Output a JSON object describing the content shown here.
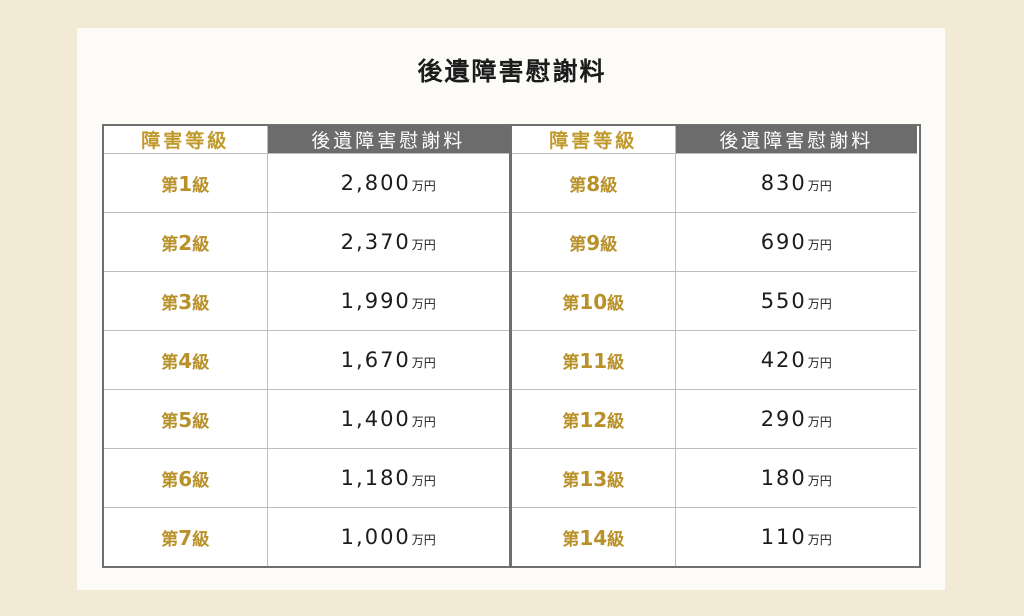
{
  "title": "後遺障害慰謝料",
  "headers": {
    "grade": "障害等級",
    "amount": "後遺障害慰謝料"
  },
  "grade_prefix": "第",
  "grade_suffix": "級",
  "unit": "万円",
  "colors": {
    "background": "#f3ead6",
    "grade_gold": "#b8912a",
    "header_gray": "#6c6c6c"
  },
  "left_rows": [
    {
      "grade": "1",
      "amount": "2,800"
    },
    {
      "grade": "2",
      "amount": "2,370"
    },
    {
      "grade": "3",
      "amount": "1,990"
    },
    {
      "grade": "4",
      "amount": "1,670"
    },
    {
      "grade": "5",
      "amount": "1,400"
    },
    {
      "grade": "6",
      "amount": "1,180"
    },
    {
      "grade": "7",
      "amount": "1,000"
    }
  ],
  "right_rows": [
    {
      "grade": "8",
      "amount": "830"
    },
    {
      "grade": "9",
      "amount": "690"
    },
    {
      "grade": "10",
      "amount": "550"
    },
    {
      "grade": "11",
      "amount": "420"
    },
    {
      "grade": "12",
      "amount": "290"
    },
    {
      "grade": "13",
      "amount": "180"
    },
    {
      "grade": "14",
      "amount": "110"
    }
  ]
}
